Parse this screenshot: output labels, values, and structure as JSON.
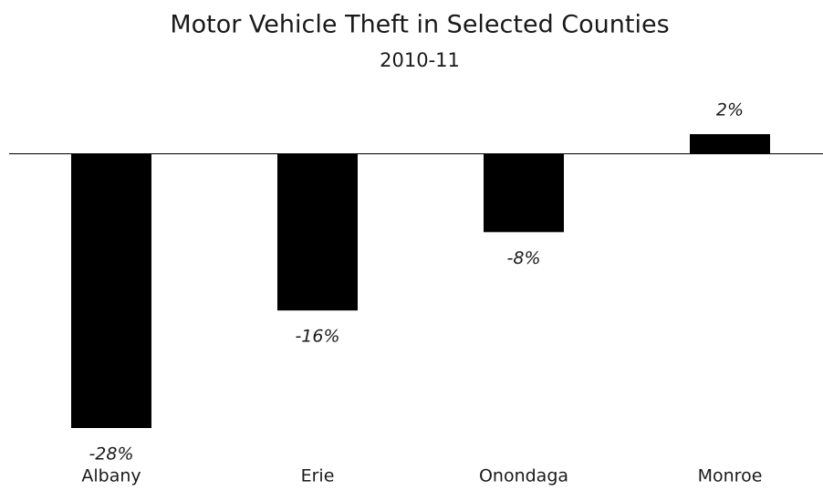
{
  "chart_data": {
    "type": "bar",
    "title": "Motor Vehicle Theft in Selected Counties",
    "subtitle": "2010-11",
    "categories": [
      "Albany",
      "Erie",
      "Onondaga",
      "Monroe"
    ],
    "values": [
      -28,
      -16,
      -8,
      2
    ],
    "value_labels": [
      "-28%",
      "-16%",
      "-8%",
      "2%"
    ],
    "color": "#000000"
  }
}
